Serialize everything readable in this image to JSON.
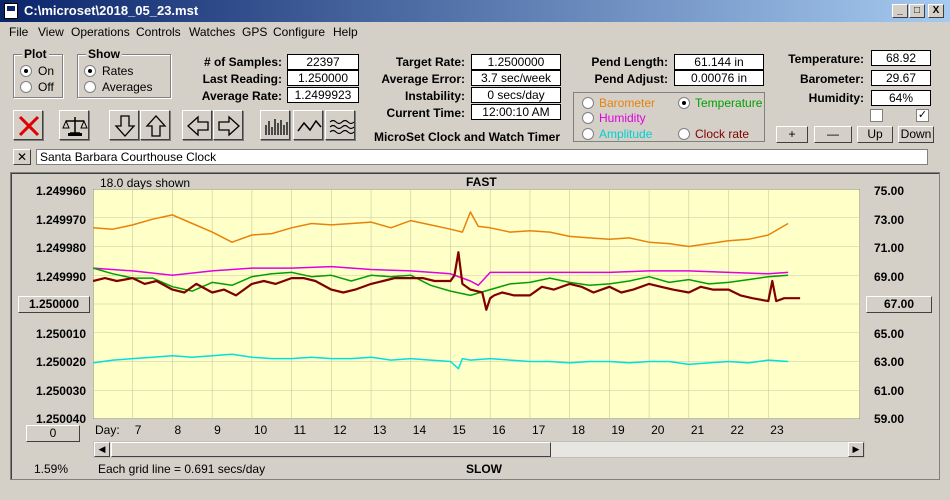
{
  "window": {
    "title": "C:\\microset\\2018_05_23.mst",
    "min": "_",
    "max": "□",
    "close": "X"
  },
  "menu": [
    "File",
    "View",
    "Operations",
    "Controls",
    "Watches",
    "GPS",
    "Configure",
    "Help"
  ],
  "plot_group": {
    "title": "Plot",
    "on": "On",
    "off": "Off",
    "selected": "On"
  },
  "show_group": {
    "title": "Show",
    "rates": "Rates",
    "averages": "Averages",
    "selected": "Rates"
  },
  "stats": {
    "samples_label": "# of Samples:",
    "samples": "22397",
    "last_reading_label": "Last Reading:",
    "last_reading": "1.250000",
    "average_rate_label": "Average Rate:",
    "average_rate": "1.2499923",
    "target_rate_label": "Target Rate:",
    "target_rate": "1.2500000",
    "average_error_label": "Average Error:",
    "average_error": "3.7 sec/week",
    "instability_label": "Instability:",
    "instability": "0 secs/day",
    "current_time_label": "Current Time:",
    "current_time": "12:00:10 AM",
    "pend_length_label": "Pend Length:",
    "pend_length": "61.144 in",
    "pend_adjust_label": "Pend Adjust:",
    "pend_adjust": "0.00076 in",
    "temperature_label": "Temperature:",
    "temperature": "68.92",
    "barometer_label": "Barometer:",
    "barometer": "29.67",
    "humidity_label": "Humidity:",
    "humidity": "64%"
  },
  "app_caption": "MicroSet Clock and Watch Timer",
  "legend": {
    "barometer": "Barometer",
    "temperature": "Temperature",
    "humidity": "Humidity",
    "amplitude": "Amplitude",
    "clock_rate": "Clock rate",
    "selected": "Temperature"
  },
  "colors": {
    "barometer": "#e8820a",
    "temperature": "#00a000",
    "humidity": "#e000e0",
    "amplitude": "#00e0e0",
    "clock_rate": "#800000",
    "plot_bg": "#ffffc8"
  },
  "adjust_buttons": {
    "plus": "+",
    "minus": "—",
    "up": "Up",
    "down": "Down"
  },
  "clock_name": "Santa Barbara Courthouse Clock",
  "clear_button": "✕",
  "chart": {
    "days_shown": "18.0 days shown",
    "top_label": "FAST",
    "bottom_label": "SLOW",
    "grid_note": "Each grid line = 0.691 secs/day",
    "percent": "1.59%",
    "center_left_button": "1.250000",
    "center_right_button": "67.00",
    "zero_button": "0",
    "day_label": "Day:"
  },
  "chart_data": {
    "type": "line",
    "left_axis_ticks": [
      "1.249960",
      "1.249970",
      "1.249980",
      "1.249990",
      "1.250000",
      "1.250010",
      "1.250020",
      "1.250030",
      "1.250040"
    ],
    "right_axis_ticks": [
      "75.00",
      "73.00",
      "71.00",
      "69.00",
      "67.00",
      "65.00",
      "63.00",
      "61.00",
      "59.00"
    ],
    "x_ticks": [
      "7",
      "8",
      "9",
      "10",
      "11",
      "12",
      "13",
      "14",
      "15",
      "16",
      "17",
      "18",
      "19",
      "20",
      "21",
      "22",
      "23"
    ],
    "x_range": [
      6,
      24
    ],
    "grid": true,
    "series": [
      {
        "key": "barometer",
        "x": [
          6,
          6.5,
          7,
          7.5,
          8,
          8.5,
          9,
          9.5,
          10,
          10.5,
          11,
          11.5,
          12,
          12.5,
          13,
          13.5,
          14,
          14.5,
          15,
          15.3,
          15.5,
          15.7,
          16,
          16.5,
          17,
          17.5,
          18,
          18.5,
          19,
          19.5,
          20,
          20.5,
          21,
          21.5,
          22,
          22.5,
          23,
          23.5
        ],
        "y": [
          72.3,
          72.2,
          72.5,
          72.9,
          73.2,
          72.6,
          72.0,
          71.3,
          71.8,
          71.9,
          72.3,
          72.6,
          72.5,
          72.6,
          72.7,
          72.3,
          72.8,
          72.5,
          72.2,
          72.0,
          73.4,
          72.4,
          72.3,
          72.0,
          72.1,
          72.0,
          71.7,
          71.6,
          71.5,
          71.6,
          71.3,
          71.2,
          71.0,
          71.2,
          71.4,
          71.5,
          71.8,
          72.6
        ]
      },
      {
        "key": "humidity",
        "x": [
          6,
          7,
          8,
          9,
          10,
          11,
          12,
          13,
          14,
          15,
          15.5,
          15.7,
          16,
          17,
          18,
          19,
          20,
          21,
          22,
          23,
          23.5
        ],
        "y": [
          69.5,
          69.3,
          69.0,
          69.3,
          69.5,
          69.5,
          69.6,
          69.4,
          69.3,
          69.1,
          68.6,
          68.3,
          69.2,
          69.2,
          69.2,
          69.2,
          69.3,
          69.3,
          69.2,
          69.1,
          69.2
        ]
      },
      {
        "key": "temperature",
        "x": [
          6,
          6.5,
          7,
          7.5,
          8,
          8.5,
          9,
          9.5,
          10,
          10.5,
          11,
          11.5,
          12,
          12.5,
          13,
          13.5,
          14,
          14.5,
          15,
          15.5,
          16,
          16.5,
          17,
          17.5,
          18,
          18.5,
          19,
          19.5,
          20,
          20.5,
          21,
          21.5,
          22,
          22.5,
          23,
          23.5
        ],
        "y": [
          69.5,
          69.1,
          68.8,
          68.8,
          68.2,
          67.9,
          68.5,
          68.3,
          68.9,
          69.1,
          69.2,
          68.9,
          69.0,
          68.6,
          69.0,
          68.9,
          69.0,
          68.3,
          67.9,
          67.6,
          68.0,
          68.4,
          68.5,
          68.8,
          68.5,
          68.3,
          68.4,
          68.6,
          68.9,
          68.5,
          68.7,
          68.4,
          68.5,
          68.7,
          68.9,
          69.0
        ]
      },
      {
        "key": "amplitude",
        "x": [
          6,
          6.5,
          7,
          7.5,
          8,
          8.5,
          9,
          9.5,
          10,
          10.5,
          11,
          11.5,
          12,
          12.5,
          13,
          13.5,
          14,
          14.5,
          15,
          15.2,
          15.3,
          15.5,
          16,
          16.5,
          17,
          17.5,
          18,
          18.5,
          19,
          19.5,
          20,
          20.5,
          21,
          21.5,
          22,
          22.5,
          23,
          23.5
        ],
        "y": [
          62.9,
          63.1,
          63.2,
          63.3,
          63.4,
          63.3,
          63.4,
          63.5,
          63.3,
          63.2,
          63.2,
          63.3,
          63.2,
          63.2,
          63.3,
          63.1,
          63.2,
          63.1,
          63.0,
          62.5,
          63.2,
          63.1,
          63.2,
          63.1,
          63.0,
          63.0,
          62.9,
          63.0,
          63.0,
          62.9,
          63.0,
          63.0,
          62.8,
          62.9,
          63.0,
          62.9,
          63.1,
          63.0
        ]
      },
      {
        "key": "clock_rate",
        "x": [
          6,
          6.3,
          6.6,
          7,
          7.3,
          7.6,
          8,
          8.3,
          8.6,
          9,
          9.3,
          9.6,
          10,
          10.3,
          10.6,
          11,
          11.3,
          11.6,
          12,
          12.3,
          12.6,
          13,
          13.3,
          13.6,
          14,
          14.3,
          14.6,
          15,
          15.1,
          15.2,
          15.3,
          15.5,
          15.8,
          15.9,
          16,
          16.1,
          16.3,
          16.6,
          17,
          17.3,
          17.6,
          18,
          18.3,
          18.6,
          19,
          19.3,
          19.6,
          20,
          20.3,
          20.6,
          21,
          21.3,
          21.6,
          22,
          22.3,
          22.6,
          23,
          23.1,
          23.2,
          23.4,
          23.6,
          23.8
        ],
        "y": [
          1.249992,
          1.249991,
          1.249992,
          1.249991,
          1.249993,
          1.249992,
          1.249995,
          1.249996,
          1.249993,
          1.249996,
          1.249995,
          1.249997,
          1.249993,
          1.249992,
          1.249993,
          1.249991,
          1.249991,
          1.249992,
          1.249995,
          1.249996,
          1.249995,
          1.249993,
          1.249992,
          1.249991,
          1.249991,
          1.249991,
          1.249992,
          1.249992,
          1.24999,
          1.249982,
          1.249993,
          1.249995,
          1.249996,
          1.250002,
          1.249998,
          1.249997,
          1.249996,
          1.249997,
          1.249997,
          1.249994,
          1.249995,
          1.249993,
          1.249994,
          1.249996,
          1.249994,
          1.249996,
          1.249995,
          1.249993,
          1.249994,
          1.249995,
          1.249996,
          1.249994,
          1.249995,
          1.249995,
          1.249997,
          1.249998,
          1.249999,
          1.249992,
          1.249999,
          1.249998,
          1.249998,
          1.249998
        ]
      }
    ]
  }
}
